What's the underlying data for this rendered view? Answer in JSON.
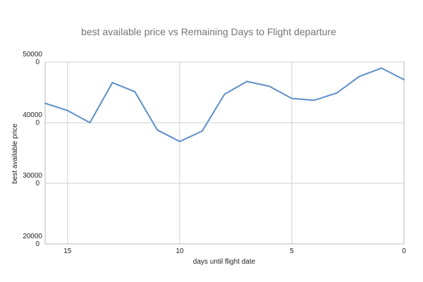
{
  "chart_data": {
    "type": "line",
    "title": "best available price vs Remaining Days to Flight departure",
    "xlabel": "days until flight date",
    "ylabel": "best available price",
    "x_reversed": true,
    "xlim": [
      16,
      0
    ],
    "ylim": [
      200000,
      500000
    ],
    "x_ticks": [
      15,
      10,
      5,
      0
    ],
    "x_tick_labels": [
      "15",
      "10",
      "5",
      "0"
    ],
    "y_ticks": [
      200000,
      300000,
      400000,
      500000
    ],
    "y_tick_labels": [
      "20000\n0",
      "30000\n0",
      "40000\n0",
      "50000\n0"
    ],
    "grid": true,
    "legend": "none",
    "series": [
      {
        "color": "#5b8fc9",
        "x": [
          16,
          15,
          14,
          13,
          12,
          11,
          10,
          9,
          8,
          7,
          6,
          5,
          4,
          3,
          2,
          1,
          0
        ],
        "y": [
          432000,
          420000,
          400000,
          466000,
          451000,
          388000,
          369000,
          386000,
          447000,
          468000,
          460000,
          440000,
          437000,
          449000,
          476000,
          490000,
          471000
        ]
      }
    ]
  }
}
